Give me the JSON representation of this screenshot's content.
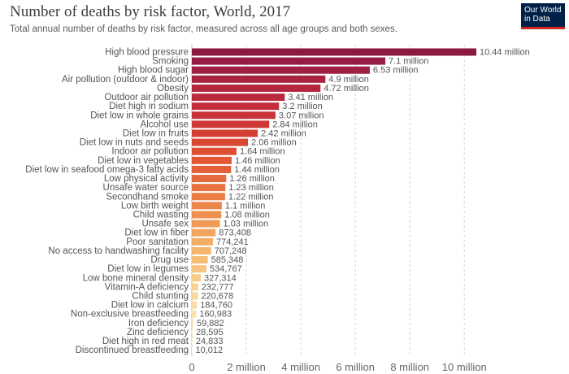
{
  "header": {
    "title": "Number of deaths by risk factor, World, 2017",
    "subtitle": "Total annual number of deaths by risk factor, measured across all age groups and both sexes."
  },
  "logo": {
    "line1": "Our World",
    "line2": "in Data",
    "bg_color": "#002147",
    "accent_color": "#ce261e"
  },
  "chart_data": {
    "type": "bar",
    "orientation": "horizontal",
    "title": "Number of deaths by risk factor, World, 2017",
    "subtitle": "Total annual number of deaths by risk factor, measured across all age groups and both sexes.",
    "xlim": [
      0,
      10440000
    ],
    "grid": true,
    "xticks": [
      {
        "value": 0,
        "label": "0"
      },
      {
        "value": 2000000,
        "label": "2 million"
      },
      {
        "value": 4000000,
        "label": "4 million"
      },
      {
        "value": 6000000,
        "label": "6 million"
      },
      {
        "value": 8000000,
        "label": "8 million"
      },
      {
        "value": 10000000,
        "label": "10 million"
      }
    ],
    "categories": [
      "High blood pressure",
      "Smoking",
      "High blood sugar",
      "Air pollution (outdoor & indoor)",
      "Obesity",
      "Outdoor air pollution",
      "Diet high in sodium",
      "Diet low in whole grains",
      "Alcohol use",
      "Diet low in fruits",
      "Diet low in nuts and seeds",
      "Indoor air pollution",
      "Diet low in vegetables",
      "Diet low in seafood omega-3 fatty acids",
      "Low physical activity",
      "Unsafe water source",
      "Secondhand smoke",
      "Low birth weight",
      "Child wasting",
      "Unsafe sex",
      "Diet low in fiber",
      "Poor sanitation",
      "No access to handwashing facility",
      "Drug use",
      "Diet low in legumes",
      "Low bone mineral density",
      "Vitamin-A deficiency",
      "Child stunting",
      "Diet low in calcium",
      "Non-exclusive breastfeeding",
      "Iron deficiency",
      "Zinc deficiency",
      "Diet high in red meat",
      "Discontinued breastfeeding"
    ],
    "values": [
      10440000,
      7100000,
      6530000,
      4900000,
      4720000,
      3410000,
      3200000,
      3070000,
      2840000,
      2420000,
      2060000,
      1640000,
      1460000,
      1440000,
      1260000,
      1230000,
      1220000,
      1100000,
      1080000,
      1030000,
      873408,
      774241,
      707248,
      585348,
      534767,
      327314,
      232777,
      220678,
      184760,
      160983,
      59882,
      28595,
      24833,
      10012
    ],
    "value_labels": [
      "10.44 million",
      "7.1 million",
      "6.53 million",
      "4.9 million",
      "4.72 million",
      "3.41 million",
      "3.2 million",
      "3.07 million",
      "2.84 million",
      "2.42 million",
      "2.06 million",
      "1.64 million",
      "1.46 million",
      "1.44 million",
      "1.26 million",
      "1.23 million",
      "1.22 million",
      "1.1 million",
      "1.08 million",
      "1.03 million",
      "873,408",
      "774,241",
      "707,248",
      "585,348",
      "534,767",
      "327,314",
      "232,777",
      "220,678",
      "184,760",
      "160,983",
      "59,882",
      "28,595",
      "24,833",
      "10,012"
    ],
    "colors": [
      "#8b1a3e",
      "#951d45",
      "#9e2043",
      "#a92341",
      "#b2273f",
      "#bb2a3c",
      "#c32e3a",
      "#c93338",
      "#ce3936",
      "#d43f34",
      "#d94632",
      "#dd4e33",
      "#e15735",
      "#e35f38",
      "#e6693b",
      "#e9733f",
      "#eb7c44",
      "#ed864a",
      "#ef9050",
      "#f19a56",
      "#f3a45d",
      "#f4ad65",
      "#f5b56d",
      "#f6bd76",
      "#f7c57f",
      "#f8cc88",
      "#f8d291",
      "#f9d89b",
      "#f9dda4",
      "#fae2ae",
      "#fae6b8",
      "#fbeac1",
      "#fbedc9",
      "#fbf0d0"
    ]
  }
}
